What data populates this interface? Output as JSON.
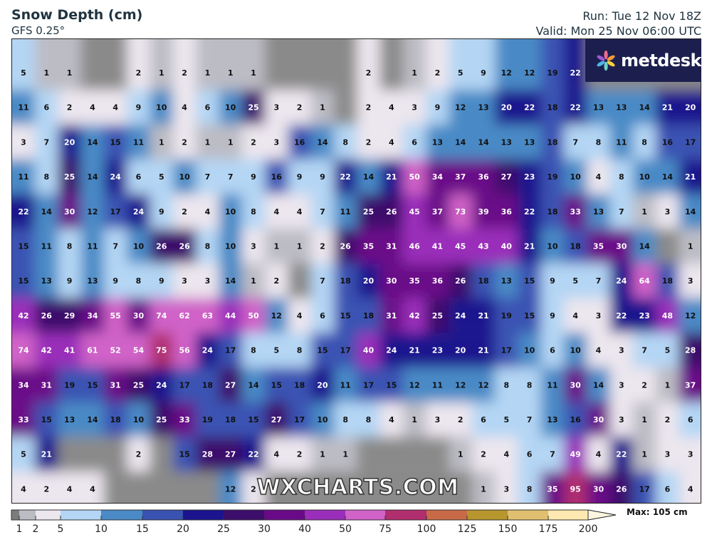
{
  "header": {
    "title": "Snow Depth (cm)",
    "model": "GFS 0.25°",
    "run": "Run: Tue 12 Nov 18Z",
    "valid": "Valid: Mon 25 Nov 06:00 UTC"
  },
  "branding": {
    "logo_text": "metdesk",
    "watermark": "WXCHARTS.COM"
  },
  "map": {
    "unit": "cm",
    "grid_values": [
      [
        5,
        1,
        1,
        null,
        null,
        2,
        1,
        2,
        1,
        1,
        1,
        null,
        null,
        null,
        null,
        2,
        null,
        1,
        2,
        5,
        9,
        12,
        12,
        19,
        22,
        null,
        null,
        null,
        null,
        null
      ],
      [
        11,
        6,
        2,
        4,
        4,
        9,
        10,
        4,
        6,
        10,
        25,
        3,
        2,
        1,
        null,
        2,
        4,
        3,
        9,
        12,
        13,
        20,
        22,
        18,
        22,
        13,
        13,
        14,
        21,
        20
      ],
      [
        3,
        7,
        20,
        14,
        15,
        11,
        1,
        2,
        1,
        1,
        2,
        3,
        16,
        14,
        8,
        2,
        4,
        6,
        13,
        14,
        14,
        13,
        13,
        18,
        7,
        8,
        11,
        8,
        16,
        17
      ],
      [
        11,
        8,
        25,
        14,
        24,
        6,
        5,
        10,
        7,
        7,
        9,
        16,
        9,
        9,
        22,
        14,
        21,
        50,
        34,
        37,
        36,
        27,
        23,
        19,
        10,
        4,
        8,
        10,
        14,
        21
      ],
      [
        22,
        14,
        30,
        12,
        17,
        24,
        9,
        2,
        4,
        10,
        8,
        4,
        4,
        7,
        11,
        25,
        26,
        45,
        37,
        73,
        39,
        36,
        22,
        18,
        33,
        13,
        7,
        1,
        3,
        14
      ],
      [
        15,
        11,
        8,
        11,
        7,
        10,
        26,
        26,
        8,
        10,
        3,
        1,
        1,
        2,
        26,
        35,
        31,
        46,
        41,
        45,
        43,
        40,
        21,
        10,
        18,
        35,
        30,
        14,
        null,
        1
      ],
      [
        15,
        13,
        9,
        13,
        9,
        8,
        9,
        3,
        3,
        14,
        1,
        2,
        null,
        7,
        18,
        20,
        30,
        35,
        36,
        26,
        18,
        13,
        15,
        9,
        5,
        7,
        24,
        64,
        18,
        3
      ],
      [
        42,
        26,
        29,
        34,
        55,
        30,
        74,
        62,
        63,
        44,
        50,
        12,
        4,
        6,
        15,
        18,
        31,
        42,
        25,
        24,
        21,
        19,
        15,
        9,
        4,
        3,
        22,
        23,
        48,
        12
      ],
      [
        74,
        42,
        41,
        61,
        52,
        54,
        75,
        56,
        24,
        17,
        8,
        5,
        8,
        15,
        17,
        40,
        24,
        21,
        23,
        20,
        21,
        17,
        10,
        6,
        10,
        4,
        3,
        7,
        5,
        28
      ],
      [
        34,
        31,
        19,
        15,
        31,
        25,
        24,
        17,
        18,
        27,
        14,
        15,
        18,
        20,
        11,
        17,
        15,
        12,
        11,
        12,
        12,
        8,
        8,
        11,
        30,
        14,
        3,
        2,
        1,
        37
      ],
      [
        33,
        15,
        13,
        14,
        18,
        10,
        25,
        33,
        19,
        18,
        15,
        27,
        17,
        10,
        8,
        8,
        4,
        1,
        3,
        2,
        6,
        5,
        7,
        13,
        16,
        30,
        3,
        1,
        2,
        6
      ],
      [
        5,
        21,
        null,
        null,
        null,
        2,
        null,
        15,
        28,
        27,
        22,
        4,
        2,
        1,
        1,
        null,
        null,
        null,
        null,
        1,
        2,
        4,
        6,
        7,
        49,
        4,
        22,
        1,
        3,
        3
      ],
      [
        4,
        2,
        4,
        4,
        null,
        null,
        null,
        null,
        null,
        12,
        2,
        null,
        null,
        null,
        null,
        null,
        null,
        null,
        null,
        null,
        1,
        3,
        8,
        35,
        95,
        30,
        26,
        17,
        6,
        4
      ]
    ]
  },
  "legend": {
    "max_label": "Max: 105 cm",
    "ticks": [
      "1",
      "2",
      "5",
      "10",
      "15",
      "20",
      "25",
      "30",
      "40",
      "50",
      "75",
      "100",
      "125",
      "150",
      "175",
      "200"
    ],
    "bins": [
      {
        "min": 0,
        "max": 1,
        "color": "#7c7c7c"
      },
      {
        "min": 1,
        "max": 2,
        "color": "#bcbcc4"
      },
      {
        "min": 2,
        "max": 5,
        "color": "#ece6ee"
      },
      {
        "min": 5,
        "max": 10,
        "color": "#b4d6f4"
      },
      {
        "min": 10,
        "max": 15,
        "color": "#4a8ac6"
      },
      {
        "min": 15,
        "max": 20,
        "color": "#3a52b2"
      },
      {
        "min": 20,
        "max": 25,
        "color": "#1b148e"
      },
      {
        "min": 25,
        "max": 30,
        "color": "#3d0e6c"
      },
      {
        "min": 30,
        "max": 40,
        "color": "#6a0a88"
      },
      {
        "min": 40,
        "max": 50,
        "color": "#9a2eba"
      },
      {
        "min": 50,
        "max": 75,
        "color": "#d062c8"
      },
      {
        "min": 75,
        "max": 100,
        "color": "#b02e6e"
      },
      {
        "min": 100,
        "max": 125,
        "color": "#c86a48"
      },
      {
        "min": 125,
        "max": 150,
        "color": "#b8962e"
      },
      {
        "min": 150,
        "max": 175,
        "color": "#e0c070"
      },
      {
        "min": 175,
        "max": 200,
        "color": "#fce8b0"
      }
    ]
  }
}
